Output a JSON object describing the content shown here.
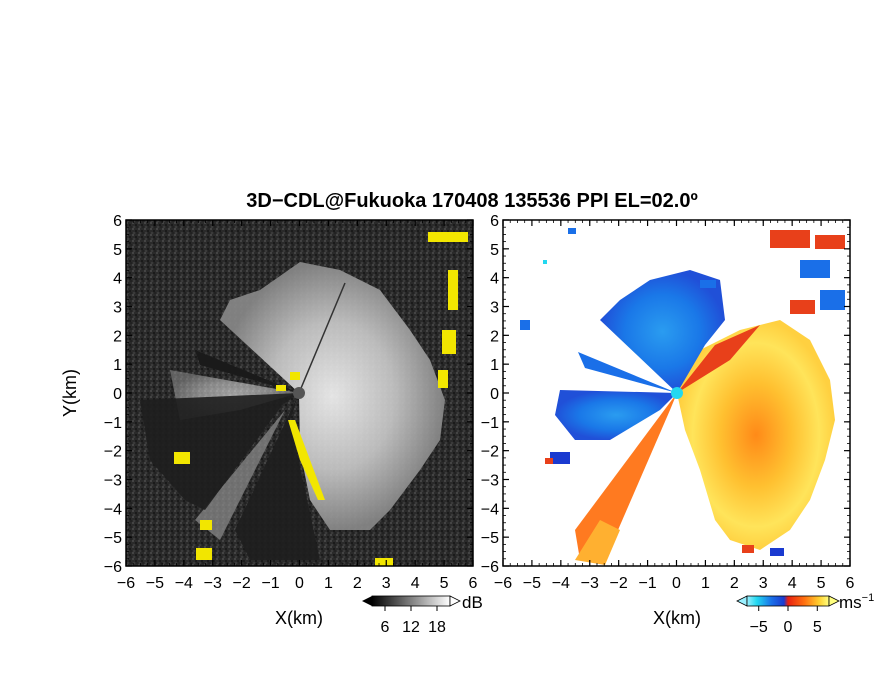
{
  "title": "3D−CDL@Fukuoka 170408 135536 PPI EL=02.0º",
  "chart_data": [
    {
      "type": "heatmap",
      "quantity": "SNR",
      "xlabel": "X(km)",
      "ylabel": "Y(km)",
      "xlim": [
        -6,
        6
      ],
      "ylim": [
        -6,
        6
      ],
      "x_ticks": [
        "−6",
        "−5",
        "−4",
        "−3",
        "−2",
        "−1",
        "0",
        "1",
        "2",
        "3",
        "4",
        "5",
        "6"
      ],
      "y_ticks": [
        "−6",
        "−5",
        "−4",
        "−3",
        "−2",
        "−1",
        "0",
        "1",
        "2",
        "3",
        "4",
        "5",
        "6"
      ],
      "colormap": "grayscale",
      "colorbar": {
        "unit": "dB",
        "ticks": [
          "6",
          "12",
          "18"
        ],
        "min": 3,
        "max": 21
      },
      "radar_origin": [
        0,
        0
      ],
      "highlight_color": "#f2e600",
      "blocked_sectors": [
        {
          "azimuth_from": 262,
          "azimuth_to": 283,
          "description": "narrow dark wedge"
        },
        {
          "azimuth_from": 160,
          "azimuth_to": 203,
          "description": "dark wedge"
        },
        {
          "azimuth_from": 205,
          "azimuth_to": 222,
          "description": "dark wedge"
        }
      ]
    },
    {
      "type": "heatmap",
      "quantity": "Doppler velocity",
      "xlabel": "X(km)",
      "ylabel": "",
      "xlim": [
        -6,
        6
      ],
      "ylim": [
        -6,
        6
      ],
      "x_ticks": [
        "−6",
        "−5",
        "−4",
        "−3",
        "−2",
        "−1",
        "0",
        "1",
        "2",
        "3",
        "4",
        "5",
        "6"
      ],
      "colormap": "blue-cyan-red-orange-yellow",
      "colorbar": {
        "unit": "ms",
        "unit_exp": "−1",
        "ticks": [
          "−5",
          "0",
          "5"
        ],
        "min": -7,
        "max": 7
      },
      "colors": {
        "negative": "#1a6fe8",
        "near_zero": "#22d8f0",
        "positive": "#e8401a",
        "high": "#ffe060"
      }
    }
  ]
}
